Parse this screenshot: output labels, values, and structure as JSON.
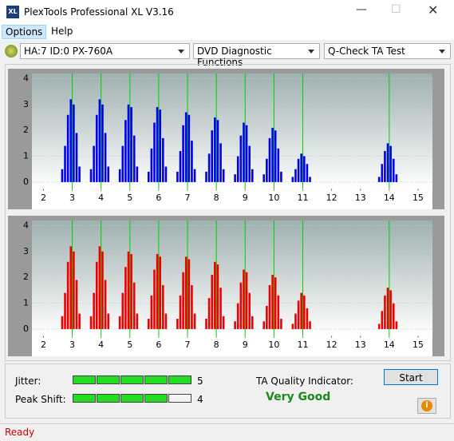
{
  "window": {
    "title": "PlexTools Professional XL V3.16",
    "icon": "XL"
  },
  "menu": [
    "Options",
    "Help"
  ],
  "toolbar": [
    "HA:7 ID:0  PX-760A",
    "DVD Diagnostic Functions",
    "Q-Check TA Test"
  ],
  "chart_data": [
    {
      "type": "bar",
      "color": "#0000ee",
      "marker_color": "#00d000",
      "markers": [
        3,
        4,
        5,
        6,
        7,
        8,
        9,
        10,
        11,
        14
      ],
      "xlim": [
        1.6,
        15.5
      ],
      "ylim": [
        -0.25,
        4.2
      ],
      "xticks": [
        2,
        3,
        4,
        5,
        6,
        7,
        8,
        9,
        10,
        11,
        12,
        13,
        14,
        15
      ],
      "yticks": [
        0,
        1,
        2,
        3,
        4
      ],
      "x": [
        2.65,
        2.75,
        2.85,
        2.95,
        3.05,
        3.15,
        3.25,
        3.65,
        3.75,
        3.85,
        3.95,
        4.05,
        4.15,
        4.25,
        4.65,
        4.75,
        4.85,
        4.95,
        5.05,
        5.15,
        5.25,
        5.65,
        5.75,
        5.85,
        5.95,
        6.05,
        6.15,
        6.25,
        6.65,
        6.75,
        6.85,
        6.95,
        7.05,
        7.15,
        7.25,
        7.65,
        7.75,
        7.85,
        7.95,
        8.05,
        8.15,
        8.25,
        8.65,
        8.75,
        8.85,
        8.95,
        9.05,
        9.15,
        9.25,
        9.65,
        9.75,
        9.85,
        9.95,
        10.05,
        10.15,
        10.25,
        10.65,
        10.75,
        10.85,
        10.95,
        11.05,
        11.15,
        11.25,
        13.65,
        13.75,
        13.85,
        13.95,
        14.05,
        14.15,
        14.25
      ],
      "values": [
        0.5,
        1.4,
        2.6,
        3.2,
        3.0,
        1.9,
        0.6,
        0.5,
        1.4,
        2.6,
        3.2,
        3.0,
        1.9,
        0.6,
        0.5,
        1.4,
        2.4,
        3.0,
        2.9,
        1.8,
        0.6,
        0.4,
        1.3,
        2.3,
        2.9,
        2.8,
        1.7,
        0.6,
        0.4,
        1.2,
        2.2,
        2.7,
        2.6,
        1.6,
        0.5,
        0.4,
        1.1,
        2.0,
        2.5,
        2.4,
        1.5,
        0.5,
        0.3,
        1.0,
        1.8,
        2.3,
        2.2,
        1.4,
        0.5,
        0.3,
        0.9,
        1.7,
        2.1,
        2.0,
        1.3,
        0.4,
        0.2,
        0.5,
        0.9,
        1.1,
        1.0,
        0.7,
        0.2,
        0.2,
        0.7,
        1.2,
        1.5,
        1.4,
        0.9,
        0.3
      ]
    },
    {
      "type": "bar",
      "color": "#ee0000",
      "marker_color": "#00d000",
      "markers": [
        3,
        4,
        5,
        6,
        7,
        8,
        9,
        10,
        11,
        14
      ],
      "xlim": [
        1.6,
        15.5
      ],
      "ylim": [
        -0.25,
        4.2
      ],
      "xticks": [
        2,
        3,
        4,
        5,
        6,
        7,
        8,
        9,
        10,
        11,
        12,
        13,
        14,
        15
      ],
      "yticks": [
        0,
        1,
        2,
        3,
        4
      ],
      "x": [
        2.65,
        2.75,
        2.85,
        2.95,
        3.05,
        3.15,
        3.25,
        3.65,
        3.75,
        3.85,
        3.95,
        4.05,
        4.15,
        4.25,
        4.65,
        4.75,
        4.85,
        4.95,
        5.05,
        5.15,
        5.25,
        5.65,
        5.75,
        5.85,
        5.95,
        6.05,
        6.15,
        6.25,
        6.65,
        6.75,
        6.85,
        6.95,
        7.05,
        7.15,
        7.25,
        7.65,
        7.75,
        7.85,
        7.95,
        8.05,
        8.15,
        8.25,
        8.65,
        8.75,
        8.85,
        8.95,
        9.05,
        9.15,
        9.25,
        9.65,
        9.75,
        9.85,
        9.95,
        10.05,
        10.15,
        10.25,
        10.65,
        10.75,
        10.85,
        10.95,
        11.05,
        11.15,
        11.25,
        13.65,
        13.75,
        13.85,
        13.95,
        14.05,
        14.15,
        14.25
      ],
      "values": [
        0.5,
        1.4,
        2.6,
        3.2,
        3.0,
        1.9,
        0.6,
        0.5,
        1.4,
        2.6,
        3.2,
        3.0,
        1.9,
        0.6,
        0.5,
        1.4,
        2.4,
        3.0,
        2.9,
        1.8,
        0.6,
        0.4,
        1.3,
        2.3,
        2.9,
        2.8,
        1.7,
        0.6,
        0.4,
        1.3,
        2.2,
        2.8,
        2.7,
        1.7,
        0.6,
        0.4,
        1.2,
        2.1,
        2.6,
        2.5,
        1.6,
        0.5,
        0.3,
        1.0,
        1.8,
        2.3,
        2.2,
        1.4,
        0.5,
        0.3,
        0.9,
        1.7,
        2.1,
        2.0,
        1.3,
        0.4,
        0.2,
        0.6,
        1.1,
        1.4,
        1.3,
        0.8,
        0.3,
        0.2,
        0.7,
        1.3,
        1.6,
        1.5,
        1.0,
        0.3
      ]
    }
  ],
  "results": {
    "jitter": {
      "label": "Jitter:",
      "value": 5
    },
    "peak_shift": {
      "label": "Peak Shift:",
      "value": 4
    },
    "ta_label": "TA Quality Indicator:",
    "ta_value": "Very Good",
    "start": "Start",
    "info": "i"
  },
  "status": "Ready"
}
